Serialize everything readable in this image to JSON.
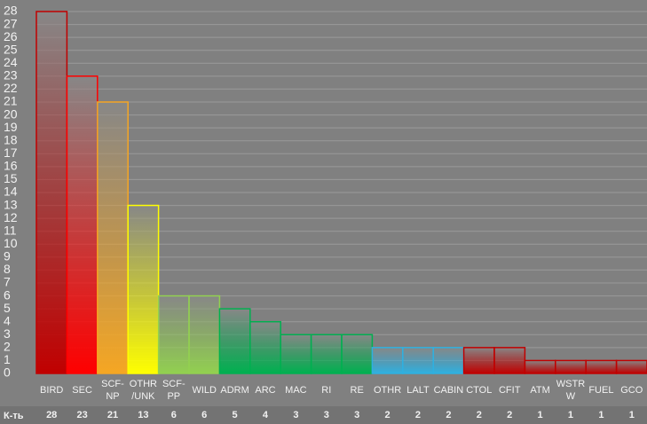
{
  "chart_data": {
    "type": "bar",
    "row_label": "К-ть",
    "categories": [
      "BIRD",
      "SEC",
      "SCF-\nNP",
      "OTHR\n/UNK",
      "SCF-\nPP",
      "WILD",
      "ADRM",
      "ARC",
      "MAC",
      "RI",
      "RE",
      "OTHR",
      "LALT",
      "CABIN",
      "CTOL",
      "CFIT",
      "ATM",
      "WSTR\nW",
      "FUEL",
      "GCO"
    ],
    "values": [
      28,
      23,
      21,
      13,
      6,
      6,
      5,
      4,
      3,
      3,
      3,
      2,
      2,
      2,
      2,
      2,
      1,
      1,
      1,
      1
    ],
    "colors": [
      "#c00000",
      "#ff0000",
      "#f5a623",
      "#ffff00",
      "#92d050",
      "#92d050",
      "#00b050",
      "#00b050",
      "#00b050",
      "#00b050",
      "#00b050",
      "#2fb0e0",
      "#2fb0e0",
      "#2fb0e0",
      "#c00000",
      "#c00000",
      "#c00000",
      "#c00000",
      "#c00000",
      "#c00000"
    ],
    "ylim": [
      0,
      28
    ],
    "yticks": [
      0,
      1,
      2,
      3,
      4,
      5,
      6,
      7,
      8,
      9,
      10,
      11,
      12,
      13,
      14,
      15,
      16,
      17,
      18,
      19,
      20,
      21,
      22,
      23,
      24,
      25,
      26,
      27,
      28
    ],
    "grid": true
  }
}
